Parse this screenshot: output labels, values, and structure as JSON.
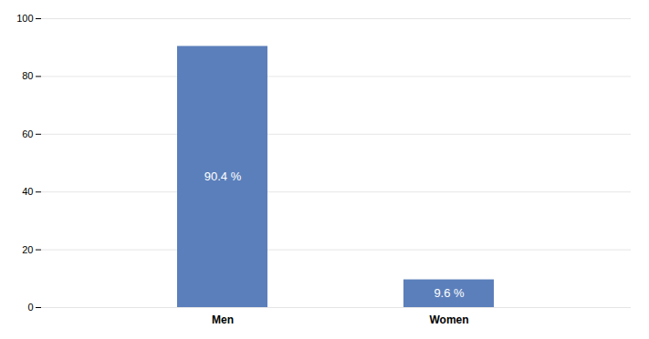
{
  "chart_data": {
    "type": "bar",
    "categories": [
      "Men",
      "Women"
    ],
    "values": [
      90.4,
      9.6
    ],
    "value_labels": [
      "90.4 %",
      "9.6 %"
    ],
    "data_labels": true,
    "color": "#5b7fbb",
    "ylim": [
      0,
      100
    ],
    "yticks": [
      0,
      20,
      40,
      60,
      80,
      100
    ],
    "grid": true
  }
}
